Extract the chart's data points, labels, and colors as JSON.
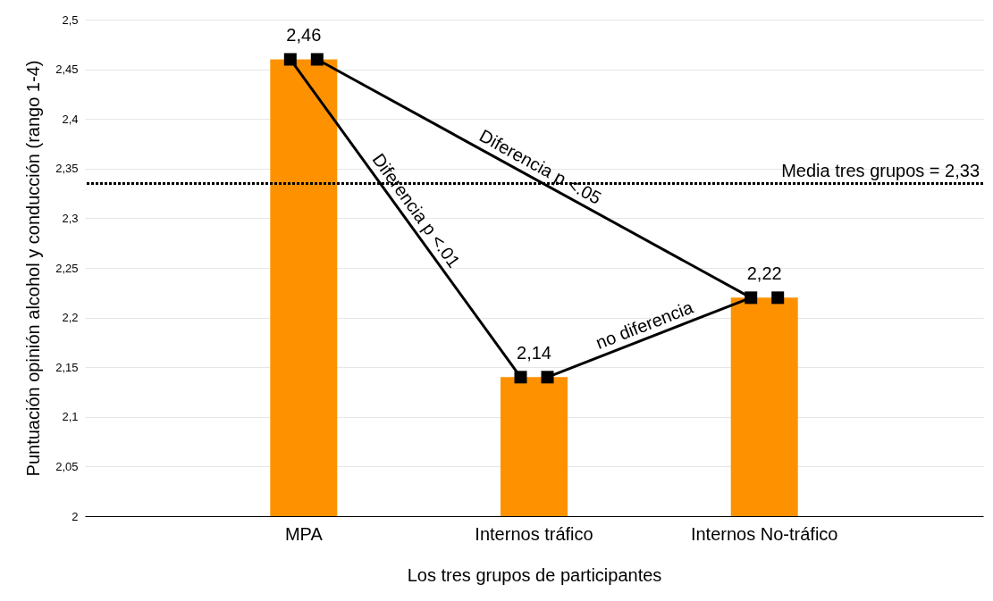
{
  "chart_data": {
    "type": "bar",
    "xlabel": "Los tres grupos de participantes",
    "ylabel": "Puntuación opinión alcohol y conducción (rango 1-4)",
    "categories": [
      "MPA",
      "Internos tráfico",
      "Internos No-tráfico"
    ],
    "values": [
      2.46,
      2.14,
      2.22
    ],
    "color": "#fe9100",
    "value_labels": [
      "2,46",
      "2,14",
      "2,22"
    ],
    "ylim": [
      2,
      2.5
    ],
    "yticks": [
      2,
      {
        "value": 2.05,
        "label": "2,05"
      },
      {
        "value": 2.1,
        "label": "2,1"
      },
      {
        "value": 2.15,
        "label": "2,15"
      },
      {
        "value": 2.2,
        "label": "2,2"
      },
      {
        "value": 2.25,
        "label": "2,25"
      },
      {
        "value": 2.3,
        "label": "2,3"
      },
      {
        "value": 2.35,
        "label": "2,35"
      },
      {
        "value": 2.4,
        "label": "2,4"
      },
      {
        "value": 2.45,
        "label": "2,45"
      },
      {
        "value": 2.5,
        "label": "2,5"
      }
    ],
    "grid": true,
    "ref_lines": [
      {
        "axis": "y",
        "value": 2.335,
        "label": "Media tres grupos = 2,33",
        "color": "#000000",
        "line_style": "dotted"
      }
    ],
    "annotations": [
      "Diferencia p <.05",
      "Diferencia p <.01",
      "no diferencia"
    ]
  }
}
